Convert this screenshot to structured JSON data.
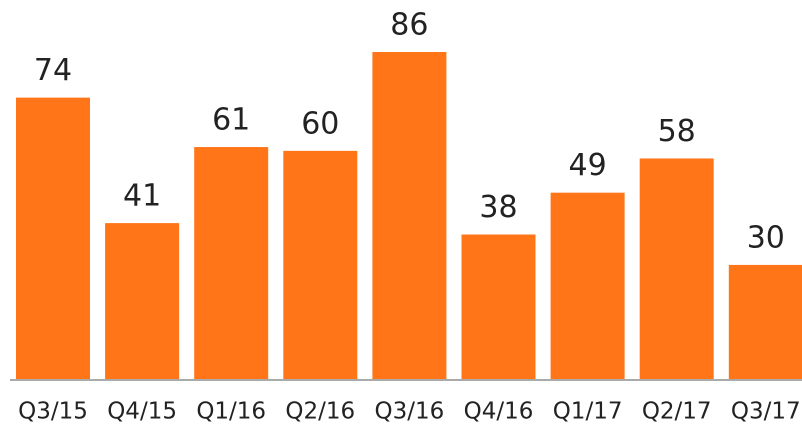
{
  "chart_data": {
    "type": "bar",
    "categories": [
      "Q3/15",
      "Q4/15",
      "Q1/16",
      "Q2/16",
      "Q3/16",
      "Q4/16",
      "Q1/17",
      "Q2/17",
      "Q3/17"
    ],
    "values": [
      74,
      41,
      61,
      60,
      86,
      38,
      49,
      58,
      30
    ],
    "color": "#ff7518"
  }
}
